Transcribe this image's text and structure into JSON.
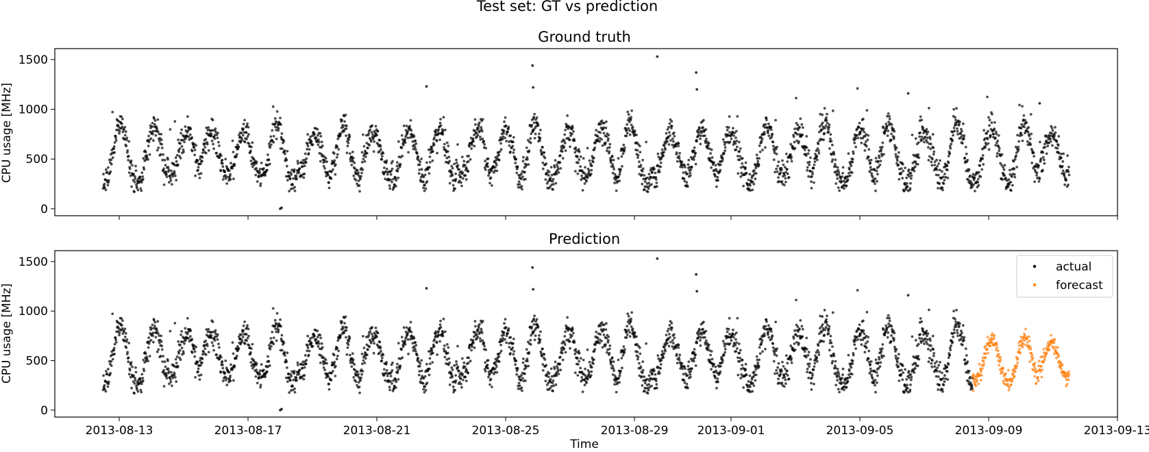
{
  "figure": {
    "suptitle": "Test set: GT vs prediction",
    "xlabel": "Time"
  },
  "chart_data": [
    {
      "type": "scatter",
      "title": "Ground truth",
      "xlabel": "",
      "ylabel": "CPU usage [MHz]",
      "xlim": [
        "2013-08-11T00:00",
        "2013-09-13T00:00"
      ],
      "ylim": [
        -70,
        1610
      ],
      "yticks": [
        0,
        500,
        1000,
        1500
      ],
      "xticks": [
        "2013-08-13",
        "2013-08-17",
        "2013-08-21",
        "2013-08-25",
        "2013-08-29",
        "2013-09-01",
        "2013-09-05",
        "2013-09-09",
        "2013-09-13"
      ],
      "xtick_labels_visible": false,
      "legend": null,
      "series": [
        {
          "name": "",
          "color": "#000000",
          "sample_interval_minutes": 15,
          "start": "2013-08-12T12:00",
          "end": "2013-09-11T12:00",
          "daily_trough_approx": 300,
          "daily_peak_approx": 800
        }
      ],
      "outliers": [
        {
          "x": "2013-08-18T00:00",
          "y": 0
        },
        {
          "x": "2013-08-18T01:00",
          "y": 10
        },
        {
          "x": "2013-08-22T13:00",
          "y": 1230
        },
        {
          "x": "2013-08-25T20:00",
          "y": 1440
        },
        {
          "x": "2013-08-25T20:30",
          "y": 1220
        },
        {
          "x": "2013-08-25T21:00",
          "y": 920
        },
        {
          "x": "2013-08-29T17:00",
          "y": 1530
        },
        {
          "x": "2013-08-30T22:00",
          "y": 1370
        },
        {
          "x": "2013-08-30T22:30",
          "y": 1200
        },
        {
          "x": "2013-09-06T12:00",
          "y": 1160
        },
        {
          "x": "2013-09-10T14:00",
          "y": 1060
        }
      ]
    },
    {
      "type": "scatter",
      "title": "Prediction",
      "xlabel": "Time",
      "ylabel": "CPU usage [MHz]",
      "xlim": [
        "2013-08-11T00:00",
        "2013-09-13T00:00"
      ],
      "ylim": [
        -70,
        1610
      ],
      "yticks": [
        0,
        500,
        1000,
        1500
      ],
      "xticks": [
        "2013-08-13",
        "2013-08-17",
        "2013-08-21",
        "2013-08-25",
        "2013-08-29",
        "2013-09-01",
        "2013-09-05",
        "2013-09-09",
        "2013-09-13"
      ],
      "xtick_labels_visible": true,
      "legend": "upper right",
      "series": [
        {
          "name": "actual",
          "color": "#000000",
          "sample_interval_minutes": 15,
          "start": "2013-08-12T12:00",
          "end": "2013-09-08T12:00",
          "daily_trough_approx": 300,
          "daily_peak_approx": 800
        },
        {
          "name": "forecast",
          "color": "#ff7f0e",
          "sample_interval_minutes": 15,
          "start": "2013-09-08T12:00",
          "end": "2013-09-11T12:00",
          "daily_trough_approx": 300,
          "daily_peak_approx": 700
        }
      ],
      "outliers": [
        {
          "x": "2013-08-18T00:00",
          "y": 0
        },
        {
          "x": "2013-08-18T01:00",
          "y": 10
        },
        {
          "x": "2013-08-22T13:00",
          "y": 1230
        },
        {
          "x": "2013-08-25T20:00",
          "y": 1440
        },
        {
          "x": "2013-08-25T20:30",
          "y": 1220
        },
        {
          "x": "2013-08-25T21:00",
          "y": 920
        },
        {
          "x": "2013-08-29T17:00",
          "y": 1530
        },
        {
          "x": "2013-08-30T22:00",
          "y": 1370
        },
        {
          "x": "2013-08-30T22:30",
          "y": 1200
        },
        {
          "x": "2013-09-06T12:00",
          "y": 1160
        }
      ]
    }
  ]
}
